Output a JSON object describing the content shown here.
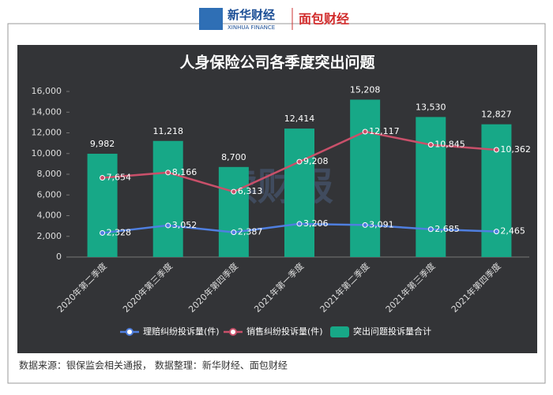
{
  "header": {
    "brand_cn": "新华财经",
    "brand_en": "XINHUA FINANCE",
    "partner": "面包财经"
  },
  "chart_data": {
    "type": "combo",
    "title": "人身保险公司各季度突出问题",
    "watermark": "读财报",
    "categories": [
      "2020年第二季度",
      "2020年第三季度",
      "2020年第四季度",
      "2021年第一季度",
      "2021年第二季度",
      "2021年第三季度",
      "2021年第四季度"
    ],
    "series": [
      {
        "name": "理赔纠纷投诉量(件)",
        "kind": "line",
        "color": "#4f7fe0",
        "values": [
          2328,
          3052,
          2387,
          3206,
          3091,
          2685,
          2465
        ],
        "value_labels": [
          "2,328",
          "3,052",
          "2,387",
          "3,206",
          "3,091",
          "2,685",
          "2,465"
        ]
      },
      {
        "name": "销售纠纷投诉量(件)",
        "kind": "line",
        "color": "#c9506a",
        "values": [
          7654,
          8166,
          6313,
          9208,
          12117,
          10845,
          10362
        ],
        "value_labels": [
          "7,654",
          "8,166",
          "6,313",
          "9,208",
          "12,117",
          "10,845",
          "10,362"
        ]
      },
      {
        "name": "突出问题投诉量合计",
        "kind": "bar",
        "color": "#17a887",
        "values": [
          9982,
          11218,
          8700,
          12414,
          15208,
          13530,
          12827
        ],
        "value_labels": [
          "9,982",
          "11,218",
          "8,700",
          "12,414",
          "15,208",
          "13,530",
          "12,827"
        ]
      }
    ],
    "ylim": [
      0,
      16000
    ],
    "yticks": [
      0,
      {
        "value": 2000,
        "label": "2,000"
      },
      {
        "value": 4000,
        "label": "4,000"
      },
      {
        "value": 6000,
        "label": "6,000"
      },
      {
        "value": 8000,
        "label": "8,000"
      },
      {
        "value": 10000,
        "label": "10,000"
      },
      {
        "value": 12000,
        "label": "12,000"
      },
      {
        "value": 14000,
        "label": "14,000"
      },
      {
        "value": 16000,
        "label": "16,000"
      }
    ],
    "grid": false,
    "source": "数据来源：银保监会相关通报， 数据整理：新华财经、面包财经"
  }
}
